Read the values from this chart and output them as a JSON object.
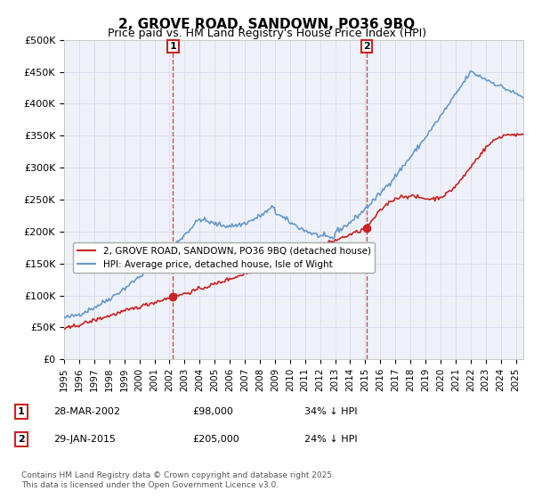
{
  "title": "2, GROVE ROAD, SANDOWN, PO36 9BQ",
  "subtitle": "Price paid vs. HM Land Registry's House Price Index (HPI)",
  "ylabel": "",
  "ylim": [
    0,
    500000
  ],
  "yticks": [
    0,
    50000,
    100000,
    150000,
    200000,
    250000,
    300000,
    350000,
    400000,
    450000,
    500000
  ],
  "ytick_labels": [
    "£0",
    "£50K",
    "£100K",
    "£150K",
    "£200K",
    "£250K",
    "£300K",
    "£350K",
    "£400K",
    "£450K",
    "£500K"
  ],
  "xlim_start": 1995.0,
  "xlim_end": 2025.5,
  "sale1_date": 2002.24,
  "sale1_price": 98000,
  "sale1_label": "1",
  "sale2_date": 2015.08,
  "sale2_price": 205000,
  "sale2_label": "2",
  "line_color_hpi": "#6699cc",
  "line_color_price": "#cc2222",
  "marker_color": "#cc2222",
  "vline_color": "#cc2222",
  "background_color": "#ffffff",
  "grid_color": "#ddddee",
  "legend_label_price": "2, GROVE ROAD, SANDOWN, PO36 9BQ (detached house)",
  "legend_label_hpi": "HPI: Average price, detached house, Isle of Wight",
  "footer_line1": "Contains HM Land Registry data © Crown copyright and database right 2025.",
  "footer_line2": "This data is licensed under the Open Government Licence v3.0.",
  "table_row1": [
    "1",
    "28-MAR-2002",
    "£98,000",
    "34% ↓ HPI"
  ],
  "table_row2": [
    "2",
    "29-JAN-2015",
    "£205,000",
    "24% ↓ HPI"
  ]
}
